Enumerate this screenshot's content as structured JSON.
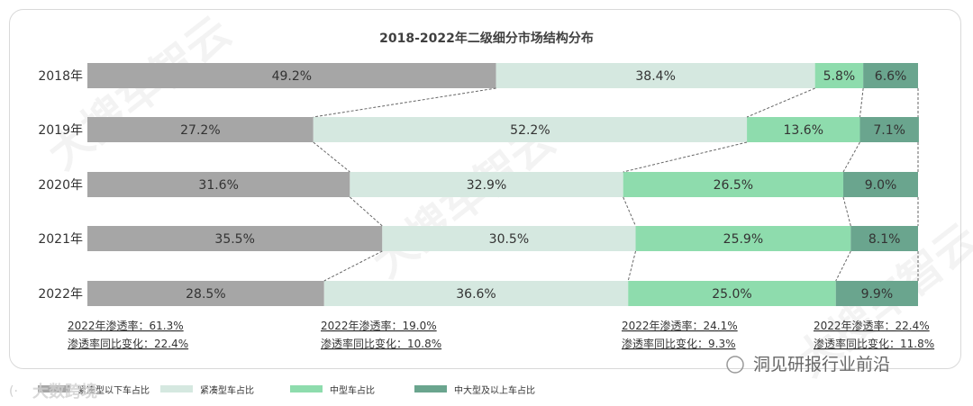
{
  "chart_data": {
    "type": "bar",
    "stacked": true,
    "orientation": "horizontal",
    "normalized": true,
    "title": "2018-2022年二级细分市场结构分布",
    "categories": [
      "2018年",
      "2019年",
      "2020年",
      "2021年",
      "2022年"
    ],
    "series": [
      {
        "name": "紧凑型以下车占比",
        "color": "#a6a6a6",
        "values": [
          49.2,
          27.2,
          31.6,
          35.5,
          28.5
        ],
        "labels": [
          "49.2%",
          "27.2%",
          "31.6%",
          "35.5%",
          "28.5%"
        ]
      },
      {
        "name": "紧凑型车占比",
        "color": "#d5e8e0",
        "values": [
          38.4,
          52.2,
          32.9,
          30.5,
          36.6
        ],
        "labels": [
          "38.4%",
          "52.2%",
          "32.9%",
          "30.5%",
          "36.6%"
        ]
      },
      {
        "name": "中型车占比",
        "color": "#8edcad",
        "values": [
          5.8,
          13.6,
          26.5,
          25.9,
          25.0
        ],
        "labels": [
          "5.8%",
          "13.6%",
          "26.5%",
          "25.9%",
          "25.0%"
        ]
      },
      {
        "name": "中大型及以上车占比",
        "color": "#6aa58e",
        "values": [
          6.6,
          7.1,
          9.0,
          8.1,
          9.9
        ],
        "labels": [
          "6.6%",
          "7.1%",
          "9.0%",
          "8.1%",
          "9.9%"
        ]
      }
    ],
    "annotations": [
      {
        "line1": "2022年渗透率：61.3%",
        "line2": "渗透率同比变化：22.4%"
      },
      {
        "line1": "2022年渗透率：19.0%",
        "line2": "渗透率同比变化：10.8%"
      },
      {
        "line1": "2022年渗透率：24.1%",
        "line2": "渗透率同比变化：9.3%"
      },
      {
        "line1": "2022年渗透率：22.4%",
        "line2": "渗透率同比变化：11.8%"
      }
    ],
    "legend_position": "bottom",
    "connector_lines": "dashed"
  },
  "watermarks": {
    "brand": "大搜车智云",
    "footer_left": "大数跨境",
    "footer_right": "洞见研报行业前沿"
  }
}
